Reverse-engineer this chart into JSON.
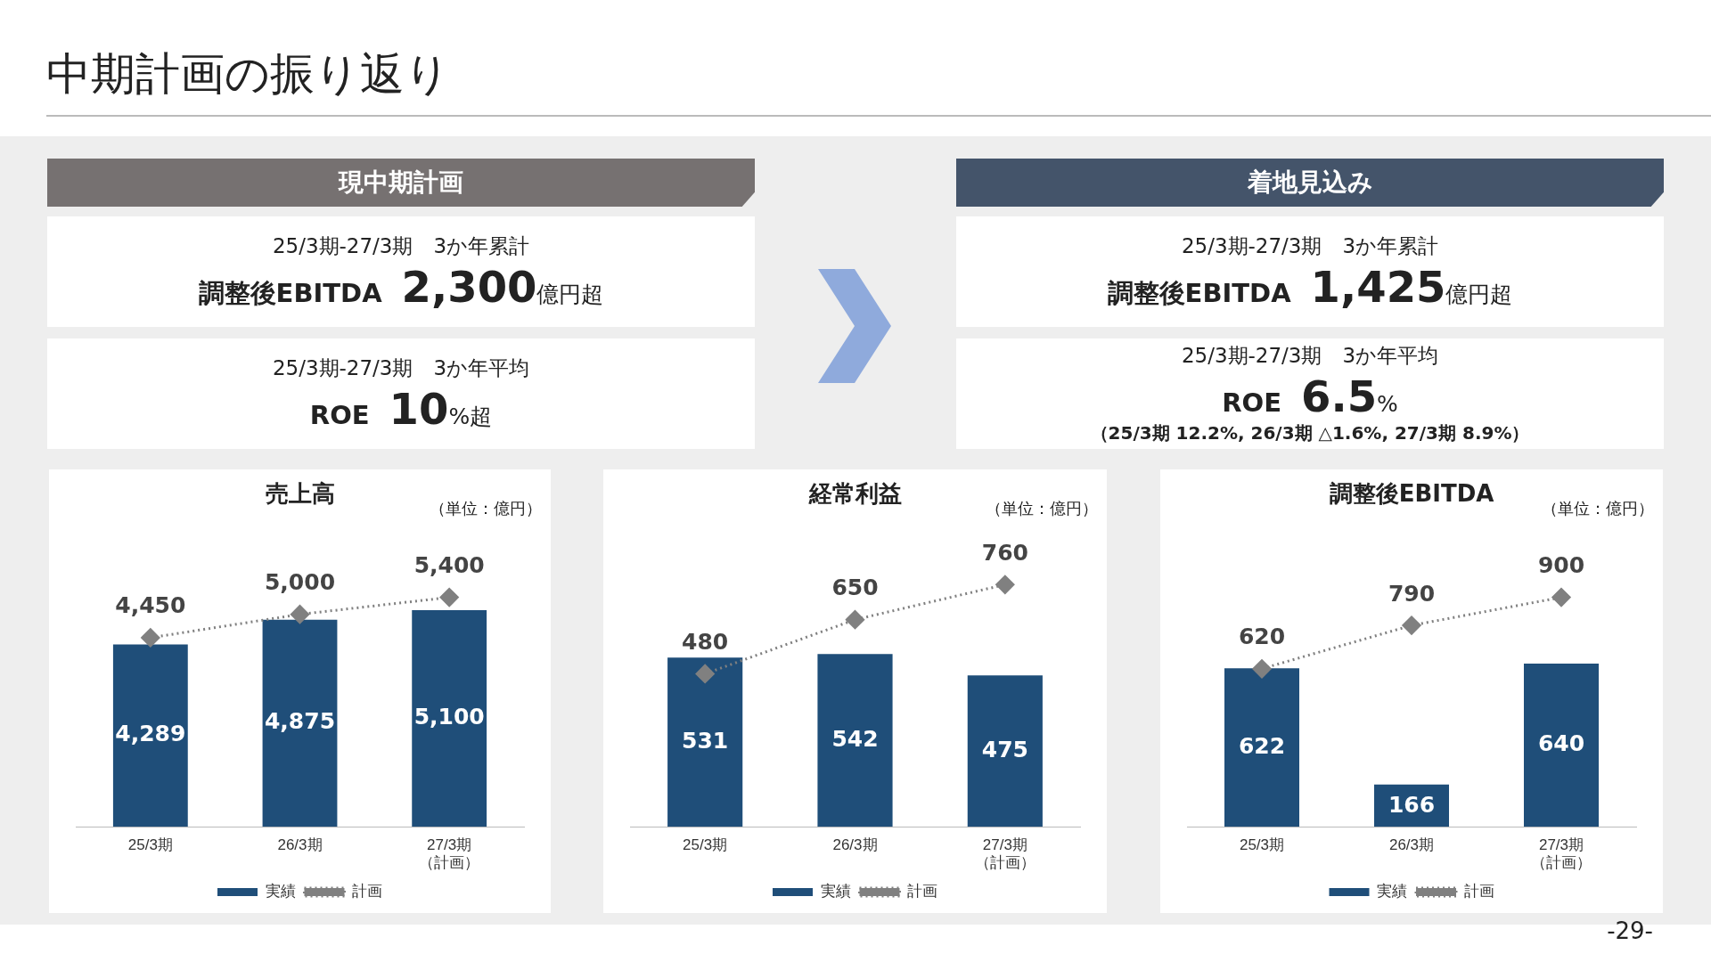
{
  "chart_data": [
    {
      "type": "other",
      "title": "中期計画の振り返り",
      "annotations": [
        "-29-"
      ]
    },
    {
      "type": "other",
      "title": "現中期計画",
      "annotations": [
        "25/3期-27/3期　3か年累計",
        "調整後EBITDA",
        "2,300",
        "億円超",
        "25/3期-27/3期　3か年平均",
        "ROE",
        "10",
        "%超"
      ]
    },
    {
      "type": "other",
      "title": "着地見込み",
      "annotations": [
        "25/3期-27/3期　3か年累計",
        "調整後EBITDA",
        "1,425",
        "億円超",
        "25/3期-27/3期　3か年平均",
        "ROE",
        "6.5",
        "%",
        "（25/3期 12.2%, 26/3期 △1.6%, 27/3期 8.9%）"
      ]
    },
    {
      "type": "bar",
      "title": "売上高",
      "subtitle": "（単位：億円）",
      "categories": [
        "25/3期",
        "26/3期",
        "27/3期（計画）"
      ],
      "series": [
        {
          "name": "実績",
          "type": "bar",
          "color": "#1f4e79",
          "values": [
            4289,
            4875,
            5100
          ],
          "value_labels": [
            "4,289",
            "4,875",
            "5,100"
          ]
        },
        {
          "name": "計画",
          "type": "line",
          "color": "#808080",
          "values": [
            4450,
            5000,
            5400
          ],
          "value_labels": [
            "4,450",
            "5,000",
            "5,400"
          ]
        }
      ],
      "marker": "diamond",
      "line_style": "dotted",
      "legend": "bottom"
    },
    {
      "type": "bar",
      "title": "経常利益",
      "subtitle": "（単位：億円）",
      "categories": [
        "25/3期",
        "26/3期",
        "27/3期（計画）"
      ],
      "series": [
        {
          "name": "実績",
          "type": "bar",
          "color": "#1f4e79",
          "values": [
            531,
            542,
            475
          ],
          "value_labels": [
            "531",
            "542",
            "475"
          ]
        },
        {
          "name": "計画",
          "type": "line",
          "color": "#808080",
          "values": [
            480,
            650,
            760
          ],
          "value_labels": [
            "480",
            "650",
            "760"
          ]
        }
      ],
      "marker": "diamond",
      "line_style": "dotted",
      "legend": "bottom"
    },
    {
      "type": "bar",
      "title": "調整後EBITDA",
      "subtitle": "（単位：億円）",
      "categories": [
        "25/3期",
        "26/3期",
        "27/3期（計画）"
      ],
      "series": [
        {
          "name": "実績",
          "type": "bar",
          "color": "#1f4e79",
          "values": [
            622,
            166,
            640
          ],
          "value_labels": [
            "622",
            "166",
            "640"
          ]
        },
        {
          "name": "計画",
          "type": "line",
          "color": "#808080",
          "values": [
            620,
            790,
            900
          ],
          "value_labels": [
            "620",
            "790",
            "900"
          ]
        }
      ],
      "marker": "diamond",
      "line_style": "dotted",
      "legend": "bottom"
    }
  ]
}
